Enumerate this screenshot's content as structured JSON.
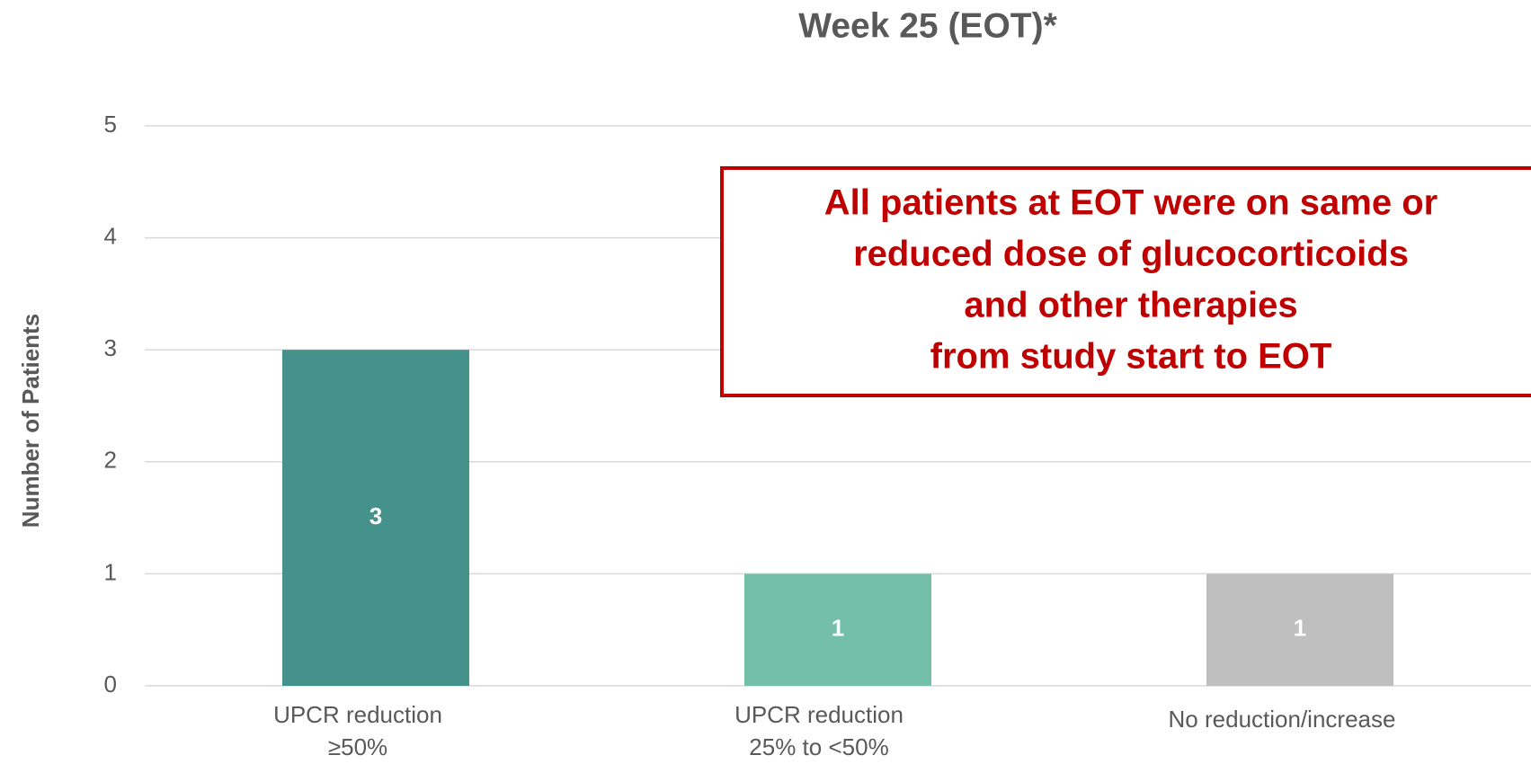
{
  "chart_data": {
    "type": "bar",
    "title": "Week 25 (EOT)*",
    "y_label": "Number of Patients",
    "categories": [
      [
        "UPCR reduction",
        "≥50%"
      ],
      [
        "UPCR reduction",
        "25% to <50%"
      ],
      [
        "No reduction/increase"
      ]
    ],
    "values": [
      3,
      1,
      1
    ],
    "colors": [
      "#45928c",
      "#74bfa8",
      "#bfbfbf"
    ],
    "ylim": [
      0,
      5
    ],
    "yticks": [
      0,
      1,
      2,
      3,
      4,
      5
    ],
    "grid": true,
    "annotation": [
      "All patients at EOT were on same or",
      "reduced dose of glucocorticoids",
      "and other therapies",
      "from study start to EOT"
    ]
  }
}
